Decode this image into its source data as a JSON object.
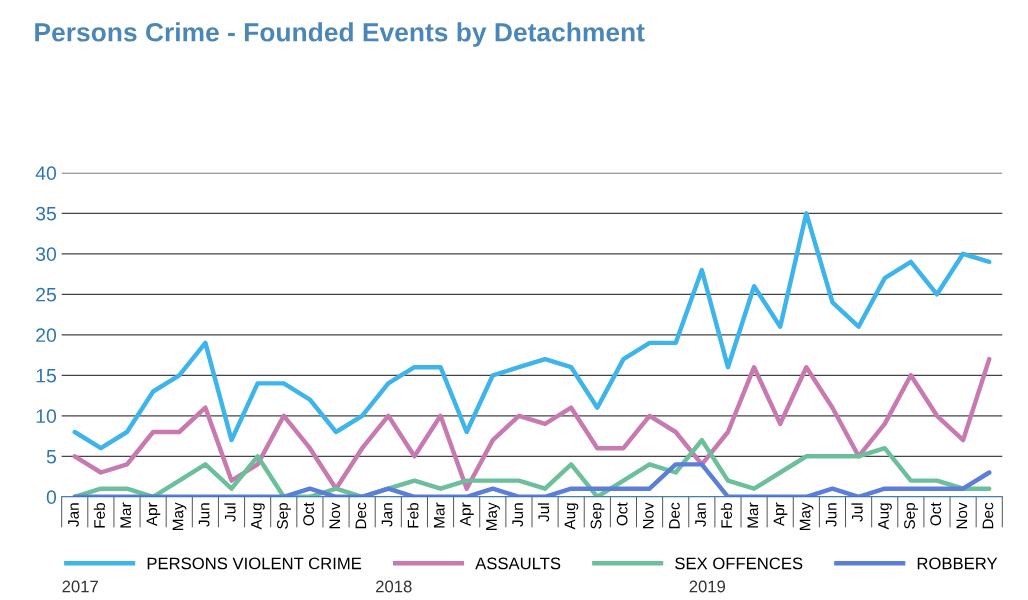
{
  "chart_data": {
    "type": "line",
    "title": "Persons Crime - Founded Events by Detachment",
    "categories": [
      "Jan",
      "Feb",
      "Mar",
      "Apr",
      "May",
      "Jun",
      "Jul",
      "Aug",
      "Sep",
      "Oct",
      "Nov",
      "Dec",
      "Jan",
      "Feb",
      "Mar",
      "Apr",
      "May",
      "Jun",
      "Jul",
      "Aug",
      "Sep",
      "Oct",
      "Nov",
      "Dec",
      "Jan",
      "Feb",
      "Mar",
      "Apr",
      "May",
      "Jun",
      "Jul",
      "Aug",
      "Sep",
      "Oct",
      "Nov",
      "Dec"
    ],
    "series": [
      {
        "name": "PERSONS VIOLENT CRIME",
        "color": "#3db5ea",
        "values": [
          8,
          6,
          8,
          13,
          15,
          19,
          7,
          14,
          14,
          12,
          8,
          10,
          14,
          16,
          16,
          8,
          15,
          16,
          17,
          16,
          11,
          17,
          19,
          19,
          28,
          16,
          26,
          21,
          35,
          24,
          21,
          27,
          29,
          25,
          30,
          29
        ]
      },
      {
        "name": "ASSAULTS",
        "color": "#c87ab0",
        "values": [
          5,
          3,
          4,
          8,
          8,
          11,
          2,
          4,
          10,
          6,
          1,
          6,
          10,
          5,
          10,
          1,
          7,
          10,
          9,
          11,
          6,
          6,
          10,
          8,
          4,
          8,
          16,
          9,
          16,
          11,
          5,
          9,
          15,
          10,
          7,
          17
        ]
      },
      {
        "name": "SEX OFFENCES",
        "color": "#6bbf9a",
        "values": [
          0,
          1,
          1,
          0,
          2,
          4,
          1,
          5,
          0,
          0,
          1,
          0,
          1,
          2,
          1,
          2,
          2,
          2,
          1,
          4,
          0,
          2,
          4,
          3,
          7,
          2,
          1,
          3,
          5,
          5,
          5,
          6,
          2,
          2,
          1,
          1
        ]
      },
      {
        "name": "ROBBERY",
        "color": "#5b7fd9",
        "values": [
          0,
          0,
          0,
          0,
          0,
          0,
          0,
          0,
          0,
          1,
          0,
          0,
          1,
          0,
          0,
          0,
          1,
          0,
          0,
          1,
          1,
          1,
          1,
          4,
          4,
          0,
          0,
          0,
          0,
          1,
          0,
          1,
          1,
          1,
          1,
          3
        ]
      }
    ],
    "annotations": [
      "2017",
      "2018",
      "2019"
    ],
    "ylim": [
      0,
      40
    ],
    "yticks": [
      0,
      5,
      10,
      15,
      20,
      25,
      30,
      35,
      40
    ],
    "grid": "y",
    "legend": "bottom",
    "marker": "none",
    "line_style": "solid"
  }
}
